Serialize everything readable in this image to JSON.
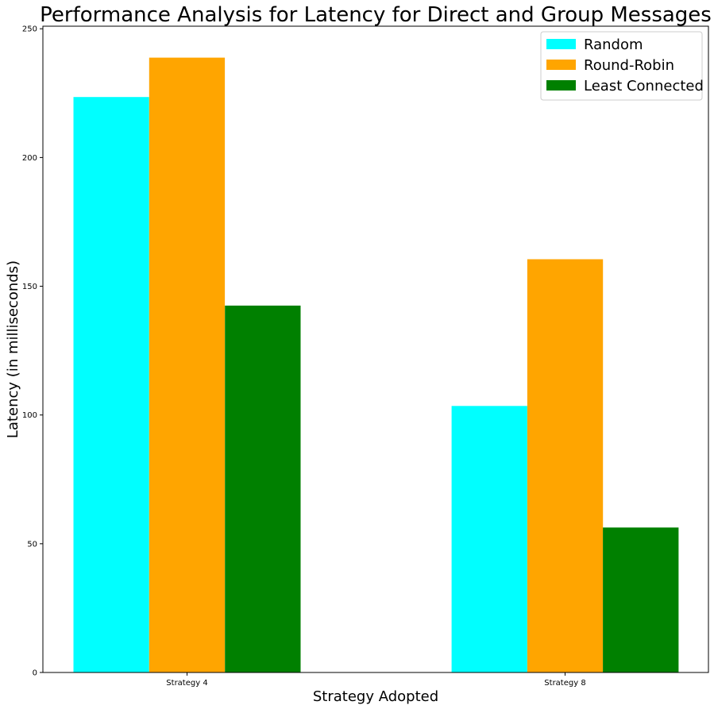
{
  "chart_data": {
    "type": "bar",
    "title": "Performance Analysis for Latency for Direct and Group Messages",
    "xlabel": "Strategy Adopted",
    "ylabel": "Latency (in milliseconds)",
    "categories": [
      "Strategy 4",
      "Strategy 8"
    ],
    "series": [
      {
        "name": "Random",
        "values": [
          223.5,
          103.5
        ],
        "color": "#00ffff"
      },
      {
        "name": "Round-Robin",
        "values": [
          238.8,
          160.5
        ],
        "color": "#ffa500"
      },
      {
        "name": "Least Connected",
        "values": [
          142.5,
          56.3
        ],
        "color": "#008000"
      }
    ],
    "ylim": [
      0,
      251
    ],
    "yticks": [
      0,
      50,
      100,
      150,
      200,
      250
    ],
    "grid": false,
    "legend_position": "top-right"
  }
}
